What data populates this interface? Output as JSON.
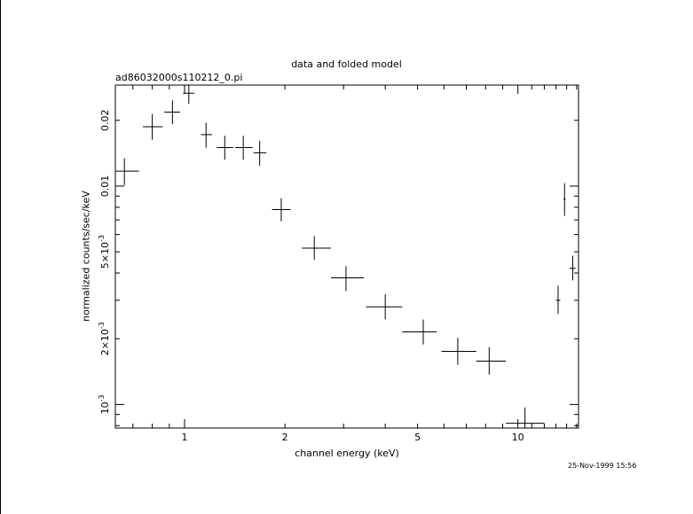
{
  "chart_data": {
    "type": "scatter",
    "title": "data and folded model",
    "subtitle": "ad86032000s110212_0.pi",
    "xlabel": "channel energy (keV)",
    "ylabel": "normalized counts/sec/keV",
    "timestamp": "25-Nov-1999 15:56",
    "xscale": "log",
    "yscale": "log",
    "xlim": [
      0.62,
      15.2
    ],
    "ylim": [
      0.00078,
      0.029
    ],
    "x_ticks": [
      {
        "value": 1,
        "label": "1"
      },
      {
        "value": 2,
        "label": "2"
      },
      {
        "value": 5,
        "label": "5"
      },
      {
        "value": 10,
        "label": "10"
      }
    ],
    "y_ticks": [
      {
        "value": 0.001,
        "label": "10",
        "sup": "-3"
      },
      {
        "value": 0.002,
        "label": "2×10",
        "sup": "-3"
      },
      {
        "value": 0.005,
        "label": "5×10",
        "sup": "-3"
      },
      {
        "value": 0.01,
        "label": "0.01",
        "sup": ""
      },
      {
        "value": 0.02,
        "label": "0.02",
        "sup": ""
      }
    ],
    "series": [
      {
        "points": [
          {
            "x": 0.66,
            "xlo": 0.6,
            "xhi": 0.73,
            "y": 0.0117,
            "ylo": 0.0101,
            "yhi": 0.0134
          },
          {
            "x": 0.8,
            "xlo": 0.75,
            "xhi": 0.86,
            "y": 0.0187,
            "ylo": 0.0163,
            "yhi": 0.0214
          },
          {
            "x": 0.92,
            "xlo": 0.87,
            "xhi": 0.97,
            "y": 0.0218,
            "ylo": 0.0192,
            "yhi": 0.0247
          },
          {
            "x": 1.03,
            "xlo": 0.99,
            "xhi": 1.07,
            "y": 0.0266,
            "ylo": 0.0238,
            "yhi": 0.03
          },
          {
            "x": 1.16,
            "xlo": 1.12,
            "xhi": 1.21,
            "y": 0.0172,
            "ylo": 0.015,
            "yhi": 0.0195
          },
          {
            "x": 1.32,
            "xlo": 1.25,
            "xhi": 1.4,
            "y": 0.015,
            "ylo": 0.0132,
            "yhi": 0.017
          },
          {
            "x": 1.5,
            "xlo": 1.42,
            "xhi": 1.6,
            "y": 0.015,
            "ylo": 0.0132,
            "yhi": 0.017
          },
          {
            "x": 1.68,
            "xlo": 1.61,
            "xhi": 1.76,
            "y": 0.0142,
            "ylo": 0.0124,
            "yhi": 0.0161
          },
          {
            "x": 1.95,
            "xlo": 1.83,
            "xhi": 2.08,
            "y": 0.0078,
            "ylo": 0.0069,
            "yhi": 0.0088
          },
          {
            "x": 2.45,
            "xlo": 2.25,
            "xhi": 2.75,
            "y": 0.0052,
            "ylo": 0.0046,
            "yhi": 0.0059
          },
          {
            "x": 3.05,
            "xlo": 2.75,
            "xhi": 3.45,
            "y": 0.0038,
            "ylo": 0.0033,
            "yhi": 0.0043
          },
          {
            "x": 4.0,
            "xlo": 3.5,
            "xhi": 4.5,
            "y": 0.0028,
            "ylo": 0.00245,
            "yhi": 0.0032
          },
          {
            "x": 5.2,
            "xlo": 4.5,
            "xhi": 5.7,
            "y": 0.00215,
            "ylo": 0.00188,
            "yhi": 0.00245
          },
          {
            "x": 6.6,
            "xlo": 5.9,
            "xhi": 7.5,
            "y": 0.00175,
            "ylo": 0.00152,
            "yhi": 0.00202
          },
          {
            "x": 8.2,
            "xlo": 7.5,
            "xhi": 9.2,
            "y": 0.00158,
            "ylo": 0.00137,
            "yhi": 0.00183
          },
          {
            "x": 10.5,
            "xlo": 9.2,
            "xhi": 12.0,
            "y": 0.00082,
            "ylo": 0.00069,
            "yhi": 0.00097
          },
          {
            "x": 13.2,
            "xlo": 13.0,
            "xhi": 13.4,
            "y": 0.003,
            "ylo": 0.0026,
            "yhi": 0.0035
          },
          {
            "x": 13.8,
            "xlo": 13.7,
            "xhi": 13.9,
            "y": 0.0087,
            "ylo": 0.0073,
            "yhi": 0.0103
          },
          {
            "x": 14.6,
            "xlo": 14.3,
            "xhi": 14.9,
            "y": 0.0042,
            "ylo": 0.0037,
            "yhi": 0.0048
          }
        ]
      }
    ],
    "grid": false,
    "colors": {
      "axes": "#000000",
      "data": "#000000",
      "background": "#ffffff"
    }
  }
}
